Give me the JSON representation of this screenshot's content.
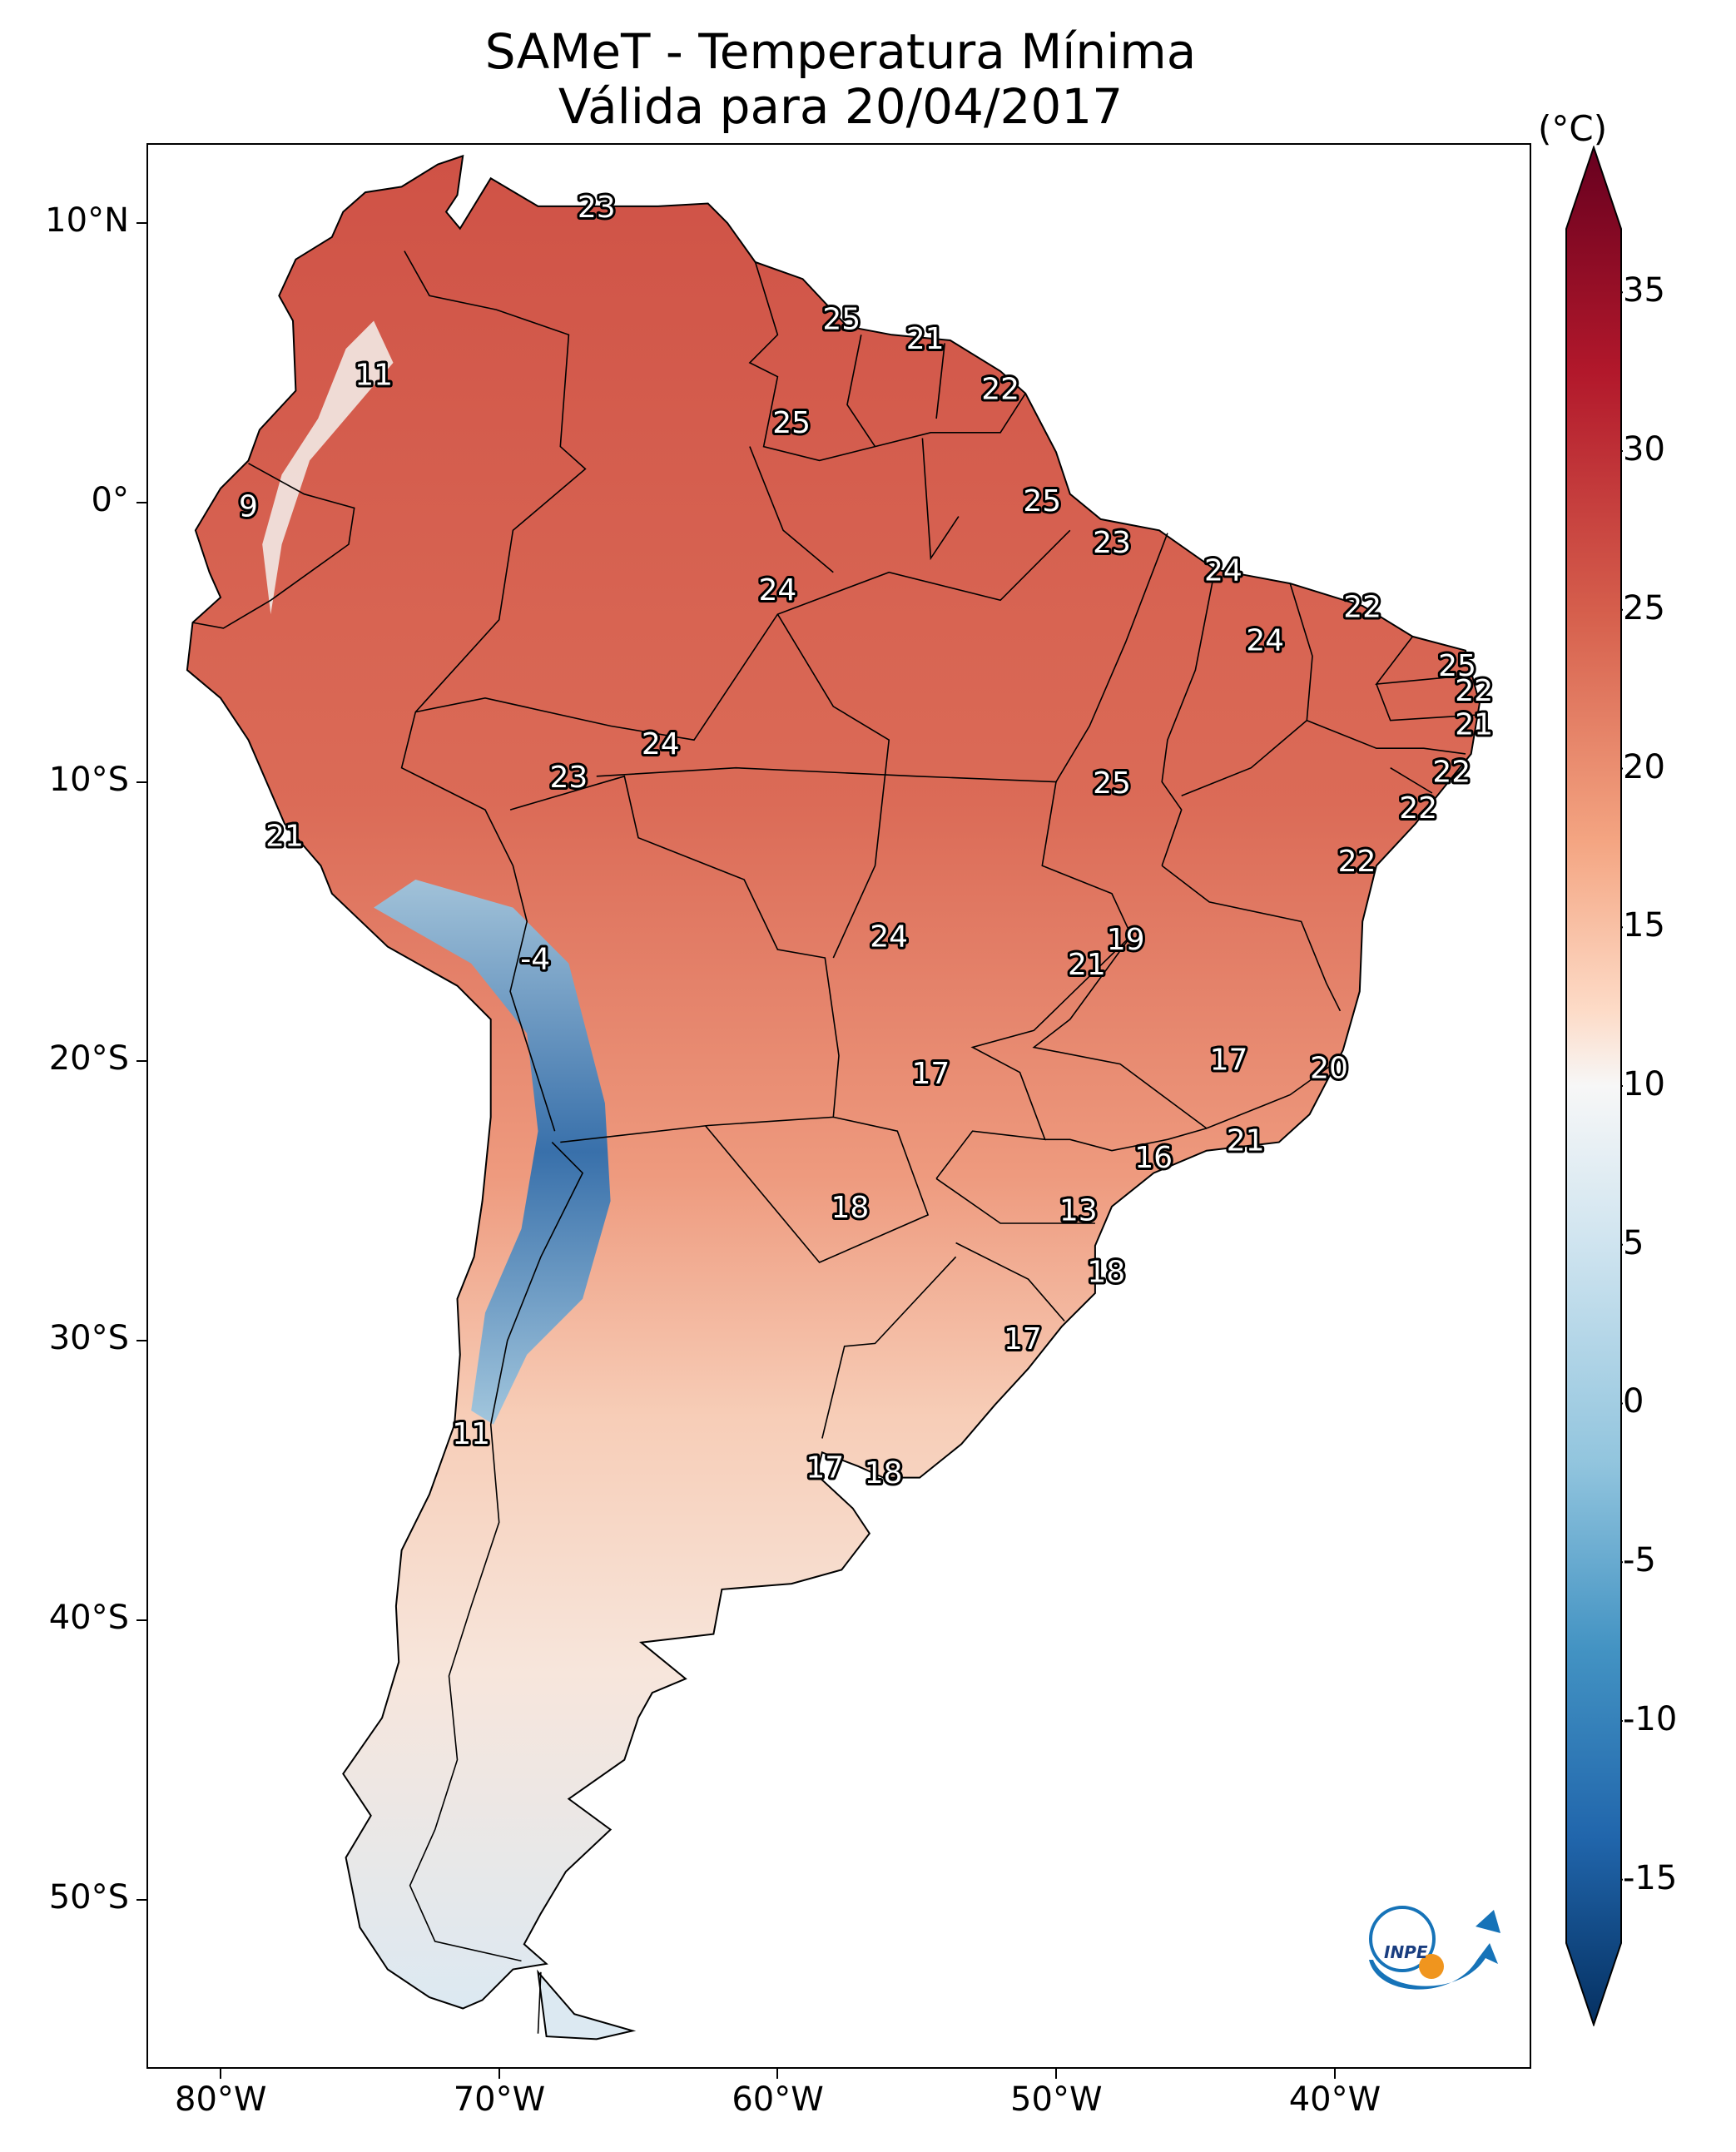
{
  "title": {
    "line1": "SAMeT - Temperatura Mínima",
    "line2": "Válida para 20/04/2017"
  },
  "longitude_labels": [
    "80°W",
    "70°W",
    "60°W",
    "50°W",
    "40°W"
  ],
  "latitude_labels": [
    "10°N",
    "0°",
    "10°S",
    "20°S",
    "30°S",
    "40°S",
    "50°S"
  ],
  "colorbar": {
    "unit": "(°C)",
    "ticks": [
      "35",
      "30",
      "25",
      "20",
      "15",
      "10",
      "5",
      "0",
      "-5",
      "-10",
      "-15"
    ],
    "min": -17,
    "max": 37,
    "colormap": "RdBu_r",
    "colors": {
      "cold": "#08306b",
      "cool": "#4a90c4",
      "neutral": "#f7f7f7",
      "warm": "#e67b5e",
      "hot": "#67001f"
    }
  },
  "labels": [
    {
      "text": "23",
      "lon": -66.5,
      "lat": 10.5
    },
    {
      "text": "11",
      "lon": -74.5,
      "lat": 4.5
    },
    {
      "text": "25",
      "lon": -57.7,
      "lat": 6.5
    },
    {
      "text": "21",
      "lon": -54.7,
      "lat": 5.8
    },
    {
      "text": "22",
      "lon": -52.0,
      "lat": 4.0
    },
    {
      "text": "25",
      "lon": -59.5,
      "lat": 2.8
    },
    {
      "text": "9",
      "lon": -79.0,
      "lat": -0.2
    },
    {
      "text": "25",
      "lon": -50.5,
      "lat": 0.0
    },
    {
      "text": "23",
      "lon": -48.0,
      "lat": -1.5
    },
    {
      "text": "24",
      "lon": -60.0,
      "lat": -3.2
    },
    {
      "text": "24",
      "lon": -44.0,
      "lat": -2.5
    },
    {
      "text": "22",
      "lon": -39.0,
      "lat": -3.8
    },
    {
      "text": "24",
      "lon": -42.5,
      "lat": -5.0
    },
    {
      "text": "25",
      "lon": -35.6,
      "lat": -5.9
    },
    {
      "text": "22",
      "lon": -35.0,
      "lat": -6.8
    },
    {
      "text": "21",
      "lon": -35.0,
      "lat": -8.0
    },
    {
      "text": "24",
      "lon": -64.2,
      "lat": -8.7
    },
    {
      "text": "23",
      "lon": -67.5,
      "lat": -9.9
    },
    {
      "text": "25",
      "lon": -48.0,
      "lat": -10.1
    },
    {
      "text": "22",
      "lon": -35.8,
      "lat": -9.7
    },
    {
      "text": "22",
      "lon": -37.0,
      "lat": -11.0
    },
    {
      "text": "21",
      "lon": -77.7,
      "lat": -12.0
    },
    {
      "text": "22",
      "lon": -39.2,
      "lat": -12.9
    },
    {
      "text": "-4",
      "lon": -68.7,
      "lat": -16.4
    },
    {
      "text": "24",
      "lon": -56.0,
      "lat": -15.6
    },
    {
      "text": "19",
      "lon": -47.5,
      "lat": -15.7
    },
    {
      "text": "21",
      "lon": -48.9,
      "lat": -16.6
    },
    {
      "text": "17",
      "lon": -54.5,
      "lat": -20.5
    },
    {
      "text": "17",
      "lon": -43.8,
      "lat": -20.0
    },
    {
      "text": "20",
      "lon": -40.2,
      "lat": -20.3
    },
    {
      "text": "21",
      "lon": -43.2,
      "lat": -22.9
    },
    {
      "text": "16",
      "lon": -46.5,
      "lat": -23.5
    },
    {
      "text": "18",
      "lon": -57.4,
      "lat": -25.3
    },
    {
      "text": "13",
      "lon": -49.2,
      "lat": -25.4
    },
    {
      "text": "18",
      "lon": -48.2,
      "lat": -27.6
    },
    {
      "text": "17",
      "lon": -51.2,
      "lat": -30.0
    },
    {
      "text": "11",
      "lon": -71.0,
      "lat": -33.4
    },
    {
      "text": "17",
      "lon": -58.3,
      "lat": -34.6
    },
    {
      "text": "18",
      "lon": -56.2,
      "lat": -34.8
    }
  ],
  "logo": {
    "text": "INPE"
  }
}
